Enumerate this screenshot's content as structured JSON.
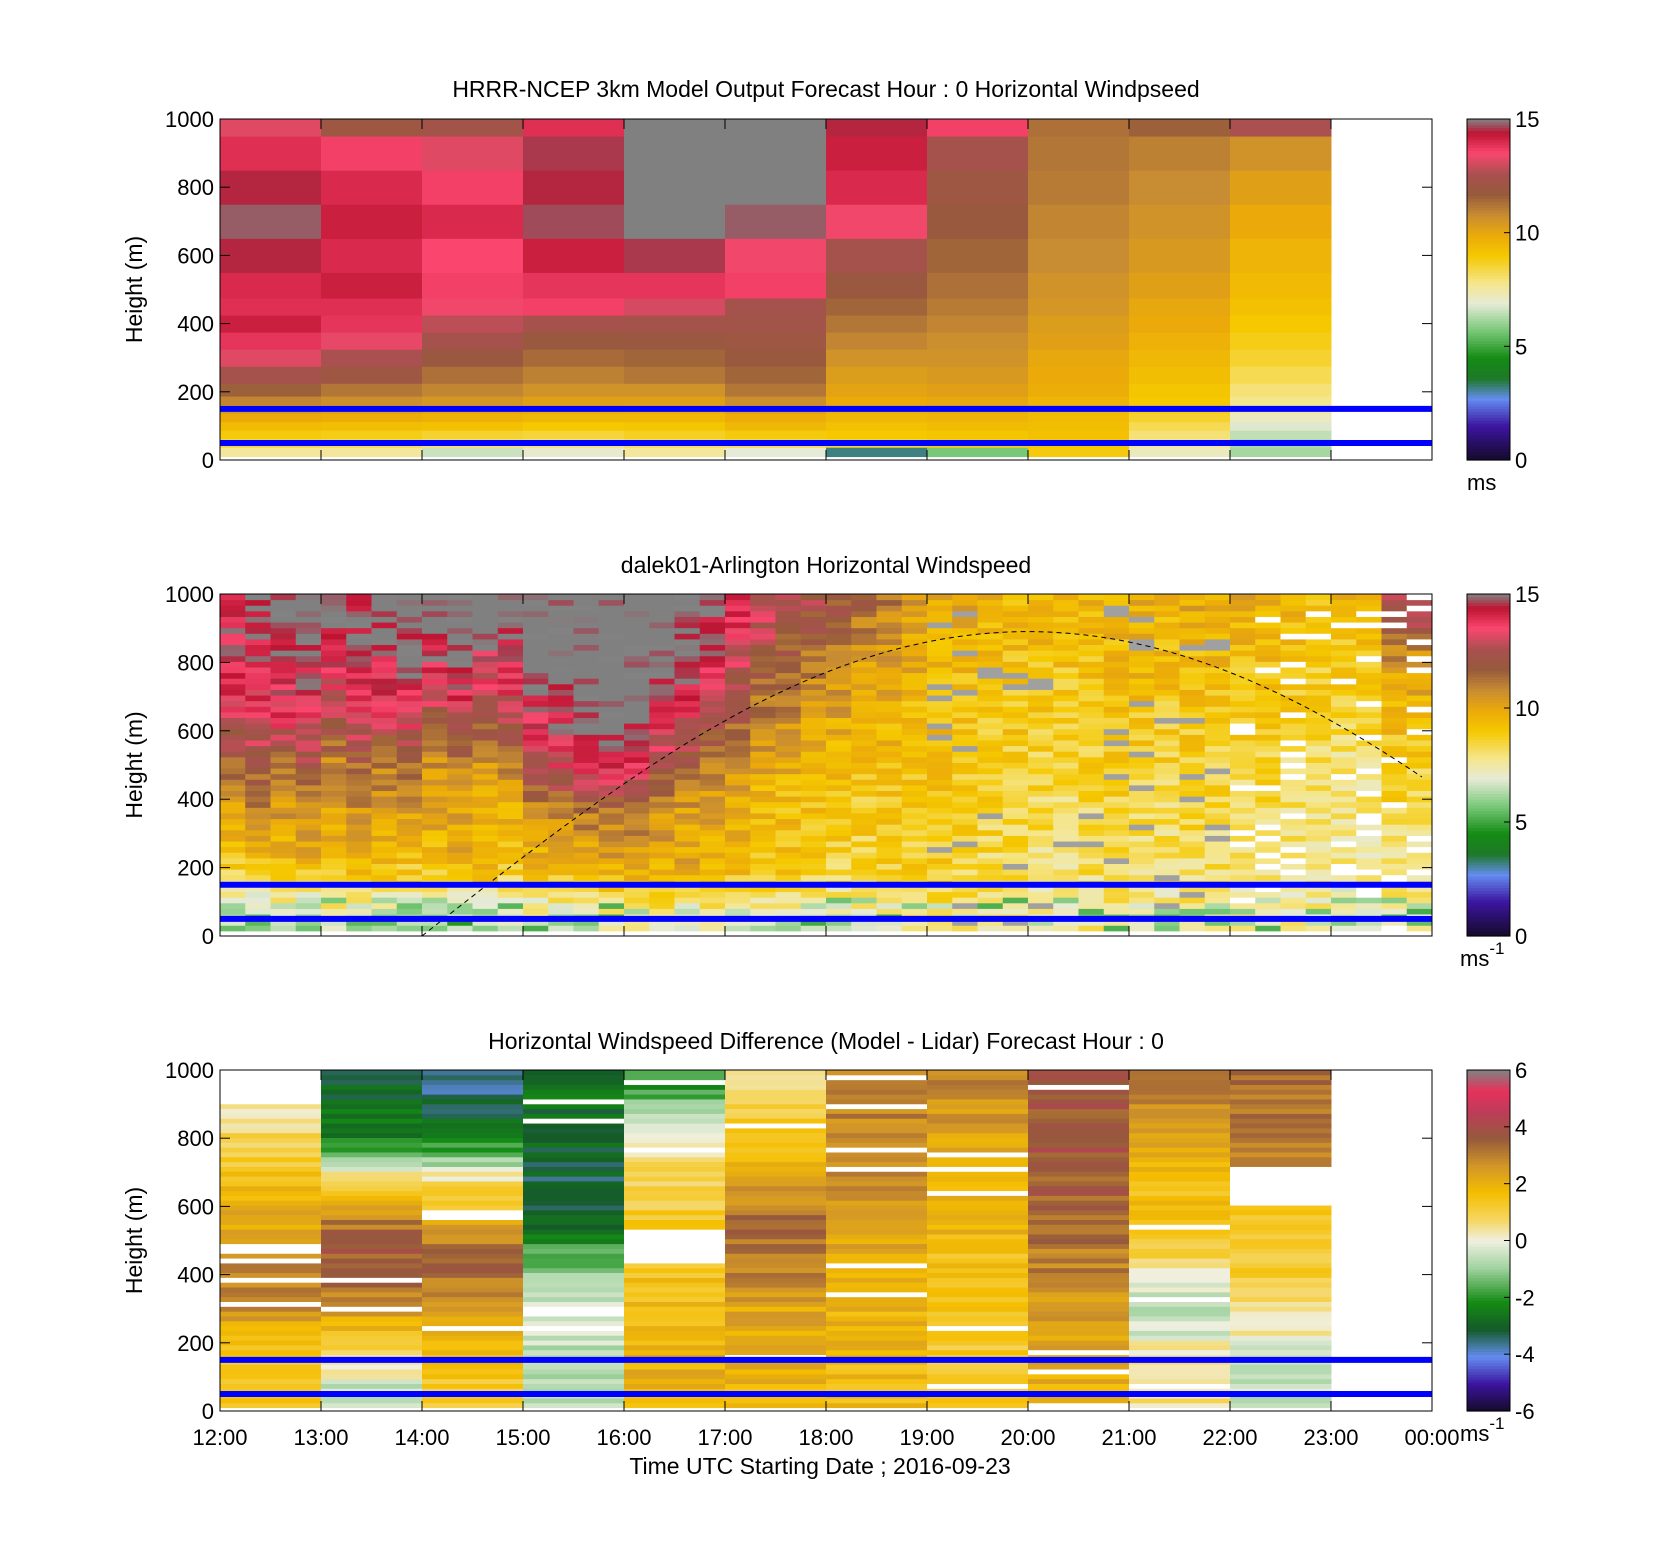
{
  "chart_data": [
    {
      "type": "heatmap",
      "title": "HRRR-NCEP 3km Model Output   Forecast Hour : 0 Horizontal Windpseed",
      "ylabel": "Height (m)",
      "ylim": [
        0,
        1000
      ],
      "yticks": [
        "0",
        "200",
        "400",
        "600",
        "800",
        "1000"
      ],
      "x_hours": [
        12,
        13,
        14,
        15,
        16,
        17,
        18,
        19,
        20,
        21,
        22,
        23
      ],
      "heights": [
        25,
        50,
        75,
        100,
        125,
        150,
        175,
        200,
        250,
        300,
        350,
        400,
        450,
        500,
        600,
        700,
        800,
        900,
        1000
      ],
      "colorbar": {
        "range": [
          0,
          15
        ],
        "ticks": [
          "0",
          "5",
          "10",
          "15"
        ],
        "unit_label": "ms",
        "unit_sup": ""
      },
      "values": [
        [
          7.6,
          8.4,
          8.9,
          9.4,
          9.9,
          10.4,
          10.9,
          11.6,
          12.4,
          13.2,
          13.8,
          14.2,
          13.9,
          14.0,
          14.5,
          14.8,
          14.5,
          13.9,
          13.2
        ],
        [
          7.6,
          8.3,
          8.8,
          9.3,
          9.8,
          10.2,
          10.7,
          11.2,
          12.0,
          12.6,
          13.3,
          13.8,
          13.9,
          14.2,
          14.0,
          14.2,
          14.0,
          13.6,
          12.0
        ],
        [
          6.6,
          8.0,
          8.6,
          9.2,
          9.7,
          10.0,
          10.5,
          10.9,
          11.3,
          11.9,
          12.4,
          12.8,
          13.4,
          13.6,
          13.5,
          14.0,
          13.6,
          13.2,
          12.2
        ],
        [
          7.0,
          7.9,
          8.5,
          9.0,
          9.5,
          9.9,
          10.2,
          10.6,
          11.0,
          11.4,
          11.8,
          12.4,
          13.6,
          13.8,
          14.2,
          14.7,
          14.5,
          14.6,
          13.9
        ],
        [
          7.6,
          8.2,
          8.7,
          9.1,
          9.5,
          9.8,
          10.2,
          10.6,
          11.2,
          11.5,
          11.9,
          12.3,
          13.1,
          13.8,
          14.6,
          15.5,
          15.5,
          15.5,
          15.5
        ],
        [
          6.9,
          8.3,
          8.9,
          9.5,
          9.8,
          10.2,
          10.7,
          11.2,
          11.5,
          11.8,
          12.0,
          12.2,
          12.4,
          13.6,
          13.4,
          14.8,
          15.5,
          15.5,
          15.5
        ],
        [
          3.2,
          8.5,
          9.0,
          9.2,
          9.5,
          9.7,
          9.9,
          10.1,
          10.3,
          10.6,
          10.9,
          11.2,
          11.5,
          11.9,
          12.4,
          13.4,
          14.0,
          14.2,
          14.5
        ],
        [
          5.7,
          8.8,
          9.1,
          9.4,
          9.6,
          9.8,
          10.0,
          10.2,
          10.4,
          10.6,
          10.7,
          10.9,
          11.1,
          11.3,
          11.5,
          11.8,
          12.0,
          12.4,
          13.6
        ],
        [
          8.9,
          9.0,
          9.2,
          9.3,
          9.4,
          9.5,
          9.6,
          9.8,
          9.9,
          10.0,
          10.2,
          10.3,
          10.5,
          10.6,
          10.8,
          10.9,
          11.1,
          11.2,
          11.3
        ],
        [
          7.2,
          7.6,
          8.0,
          8.3,
          8.6,
          8.8,
          9.0,
          9.1,
          9.3,
          9.5,
          9.7,
          9.9,
          10.0,
          10.2,
          10.4,
          10.6,
          10.8,
          11.0,
          11.6
        ],
        [
          6.2,
          6.3,
          6.5,
          6.8,
          7.2,
          7.6,
          7.8,
          8.0,
          8.3,
          8.6,
          8.8,
          9.0,
          9.2,
          9.4,
          9.6,
          9.9,
          10.2,
          10.6,
          12.6
        ]
      ]
    },
    {
      "type": "heatmap",
      "title": "dalek01-Arlington  Horizontal Windspeed",
      "ylabel": "Height (m)",
      "ylim": [
        0,
        1000
      ],
      "yticks": [
        "0",
        "200",
        "400",
        "600",
        "800",
        "1000"
      ],
      "colorbar": {
        "range": [
          0,
          15
        ],
        "ticks": [
          "0",
          "5",
          "10",
          "15"
        ],
        "unit_label": "ms",
        "unit_sup": "-1"
      },
      "time_columns": 48,
      "column_profiles_ms": [
        [
          6,
          8.5,
          10,
          11.5,
          13,
          14.2,
          14.5
        ],
        [
          6,
          9,
          10.5,
          12,
          13.4,
          14.2,
          14.6
        ],
        [
          6.5,
          9.2,
          10.2,
          11.5,
          13.6,
          14.5,
          15
        ],
        [
          6,
          9.4,
          10.6,
          12.2,
          13.8,
          14.6,
          15.2
        ],
        [
          7,
          9.2,
          10,
          10.8,
          12.6,
          14,
          15.5
        ],
        [
          6.5,
          9.5,
          10.4,
          11.6,
          13.4,
          14.8,
          14.8
        ],
        [
          6.2,
          9.3,
          10,
          11.2,
          13.2,
          14.3,
          15.2
        ],
        [
          6,
          9.0,
          10.1,
          11.4,
          13.6,
          14.6,
          15.5
        ],
        [
          5.5,
          9.2,
          9.9,
          10.6,
          12.4,
          14.2,
          15.5
        ],
        [
          5.2,
          9.6,
          10.2,
          11.0,
          13.0,
          14.9,
          15.5
        ],
        [
          6,
          9.4,
          9.8,
          10.4,
          12.2,
          13.8,
          15.5
        ],
        [
          6.5,
          9.0,
          9.6,
          10.8,
          12.8,
          14.0,
          15.5
        ],
        [
          7,
          9.6,
          10.5,
          12.6,
          14.2,
          15.5,
          15.5
        ],
        [
          6.8,
          9.4,
          10.8,
          13.2,
          14.6,
          15.5,
          15.5
        ],
        [
          6.4,
          9.6,
          11.0,
          13.6,
          15.2,
          15.5,
          15.5
        ],
        [
          7.2,
          9.8,
          11.2,
          13.8,
          15.5,
          15.5,
          15.5
        ],
        [
          7.4,
          10.0,
          11.4,
          13.4,
          15.5,
          15.5,
          15.5
        ],
        [
          7.6,
          9.6,
          10.6,
          12.2,
          14.0,
          15.5,
          15.5
        ],
        [
          7.8,
          9.8,
          10.2,
          11.6,
          13.6,
          14.6,
          15.5
        ],
        [
          7.5,
          9.4,
          10.0,
          11.2,
          12.8,
          14.2,
          14.8
        ],
        [
          7.0,
          9.5,
          9.8,
          10.4,
          11.8,
          13.0,
          14.0
        ],
        [
          6.8,
          9.2,
          9.4,
          10.0,
          11.0,
          12.0,
          13.2
        ],
        [
          7.2,
          9.0,
          9.2,
          9.8,
          10.6,
          11.6,
          12.6
        ],
        [
          7.4,
          8.8,
          9.0,
          9.6,
          10.2,
          11.0,
          12.2
        ],
        [
          7.0,
          8.6,
          8.9,
          9.4,
          10.0,
          10.8,
          11.8
        ],
        [
          7.2,
          8.4,
          8.8,
          9.2,
          9.8,
          10.4,
          11.4
        ],
        [
          7.4,
          8.6,
          8.9,
          9.2,
          9.6,
          10.1,
          11.0
        ],
        [
          7.6,
          8.6,
          8.8,
          9.0,
          9.4,
          9.8,
          10.4
        ],
        [
          7.8,
          8.8,
          9.0,
          9.2,
          9.4,
          9.6,
          10.0
        ],
        [
          7.9,
          8.4,
          8.7,
          9.0,
          9.2,
          9.4,
          9.8
        ],
        [
          7.8,
          8.3,
          8.5,
          8.8,
          9.0,
          9.3,
          9.6
        ],
        [
          7.7,
          8.2,
          8.4,
          8.7,
          9.0,
          9.2,
          9.4
        ],
        [
          7.6,
          8.0,
          8.3,
          8.6,
          8.9,
          9.2,
          9.6
        ],
        [
          7.5,
          7.9,
          8.2,
          8.5,
          8.8,
          9.1,
          9.5
        ],
        [
          7.7,
          8.1,
          8.3,
          8.6,
          8.8,
          9.2,
          9.6
        ],
        [
          7.8,
          8.2,
          8.5,
          8.8,
          9.0,
          9.3,
          9.7
        ],
        [
          7.6,
          8.0,
          8.4,
          8.7,
          9.0,
          9.4,
          9.8
        ],
        [
          7.4,
          7.9,
          8.3,
          8.6,
          8.9,
          9.3,
          9.7
        ],
        [
          7.7,
          8.1,
          8.4,
          8.7,
          9.1,
          9.4,
          9.8
        ],
        [
          7.6,
          8.0,
          8.3,
          8.6,
          9.0,
          9.4,
          10.0
        ],
        [
          7.5,
          7.8,
          8.1,
          8.4,
          8.8,
          9.2,
          9.8
        ],
        [
          7.6,
          7.9,
          8.2,
          8.5,
          8.9,
          9.3,
          9.6
        ],
        [
          7.4,
          7.7,
          8.0,
          8.3,
          8.7,
          9.1,
          9.5
        ],
        [
          7.5,
          7.8,
          8.0,
          8.2,
          8.6,
          8.9,
          9.2
        ],
        [
          7.3,
          7.6,
          7.8,
          8.0,
          8.4,
          8.8,
          9.4
        ],
        [
          7.2,
          7.5,
          7.7,
          8.1,
          8.6,
          9.0,
          9.6
        ],
        [
          7.6,
          8.0,
          8.4,
          8.8,
          9.4,
          10.4,
          12.8
        ],
        [
          7.6,
          8.0,
          8.4,
          8.8,
          9.4,
          10.4,
          12.8
        ]
      ],
      "profile_heights_m": [
        50,
        200,
        350,
        500,
        650,
        800,
        950
      ],
      "reference_curve": {
        "style": "dashed",
        "peak_time": "20:00",
        "peak_height_m": 890
      }
    },
    {
      "type": "heatmap",
      "title": "Horizontal Windspeed Difference (Model - Lidar) Forecast Hour : 0",
      "ylabel": "Height (m)",
      "xlabel": "Time UTC  Starting Date ; 2016-09-23",
      "ylim": [
        0,
        1000
      ],
      "yticks": [
        "0",
        "200",
        "400",
        "600",
        "800",
        "1000"
      ],
      "xticks": [
        "12:00",
        "13:00",
        "14:00",
        "15:00",
        "16:00",
        "17:00",
        "18:00",
        "19:00",
        "20:00",
        "21:00",
        "22:00",
        "23:00",
        "00:00"
      ],
      "colorbar": {
        "range": [
          -6,
          6
        ],
        "ticks": [
          "-6",
          "-4",
          "-2",
          "0",
          "2",
          "4",
          "6"
        ],
        "unit_label": "ms",
        "unit_sup": "-1"
      },
      "column_profiles_ms": [
        [
          1.2,
          1.4,
          2.8,
          3.0,
          2.2,
          1.5,
          0.8,
          0.3
        ],
        [
          -0.6,
          0.8,
          2.6,
          3.8,
          3.2,
          0.8,
          -2.4,
          -3.0
        ],
        [
          1.0,
          1.6,
          2.4,
          3.6,
          2.2,
          0.6,
          -2.6,
          -3.6
        ],
        [
          -0.8,
          -0.6,
          -0.2,
          -1.2,
          -2.8,
          -3.2,
          -3.0,
          -2.6
        ],
        [
          1.8,
          2.0,
          1.6,
          1.4,
          1.2,
          1.0,
          0.4,
          -2.0
        ],
        [
          1.8,
          2.0,
          2.2,
          3.0,
          3.4,
          2.4,
          1.4,
          0.8
        ],
        [
          1.6,
          1.8,
          2.0,
          2.2,
          2.4,
          2.6,
          2.8,
          3.0
        ],
        [
          1.2,
          1.3,
          1.4,
          1.6,
          1.8,
          2.0,
          2.4,
          2.8
        ],
        [
          1.8,
          2.2,
          2.6,
          3.0,
          3.4,
          3.6,
          3.8,
          3.6
        ],
        [
          0.6,
          0.2,
          -0.8,
          0.6,
          1.4,
          1.8,
          2.4,
          2.8
        ],
        [
          -0.6,
          -0.2,
          0.6,
          1.2,
          1.4,
          2.4,
          3.0,
          3.2
        ]
      ],
      "profile_heights_m": [
        50,
        175,
        300,
        425,
        550,
        675,
        800,
        950
      ],
      "reference_lines_m": [
        50,
        150
      ]
    }
  ]
}
